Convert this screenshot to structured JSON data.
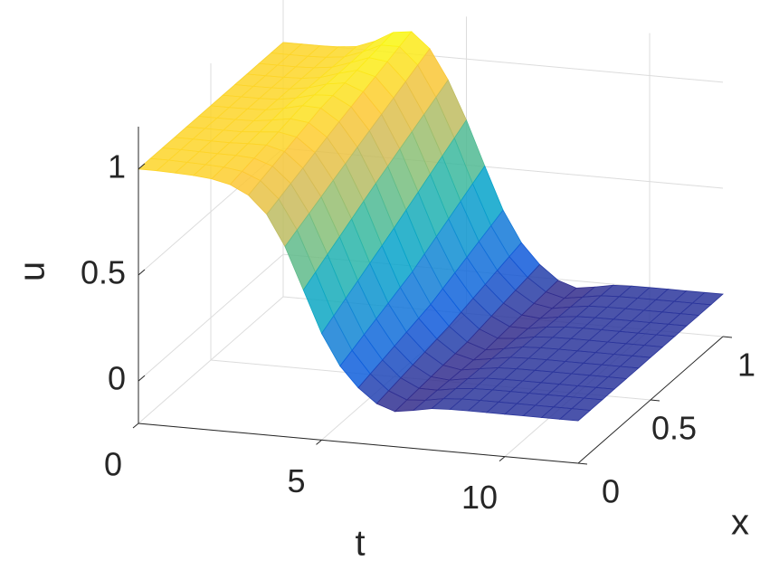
{
  "chart_data": {
    "type": "surface",
    "t_label": "t",
    "x_label": "x",
    "z_label": "u",
    "t": [
      0,
      0.5,
      1,
      1.5,
      2,
      2.5,
      3,
      3.5,
      4,
      4.5,
      5,
      5.5,
      6,
      6.5,
      7,
      7.5,
      8,
      8.5,
      9,
      9.5,
      10,
      10.5,
      11,
      11.5,
      12
    ],
    "x": [
      0,
      0.5,
      1
    ],
    "z": [
      [
        1,
        1,
        0.997,
        0.993,
        0.985,
        0.966,
        0.924,
        0.841,
        0.697,
        0.5,
        0.303,
        0.157,
        0.062,
        -0.005,
        -0.034,
        -0.021,
        -0.005,
        -0.001,
        0,
        0,
        0,
        0,
        0,
        0,
        0
      ],
      [
        1,
        1,
        1.001,
        1.004,
        1.019,
        1.04,
        1.036,
        0.979,
        0.867,
        0.704,
        0.501,
        0.303,
        0.157,
        0.062,
        -0.005,
        -0.034,
        -0.021,
        -0.005,
        -0.001,
        0,
        0,
        0,
        0,
        0,
        0
      ],
      [
        1,
        1,
        1,
        1.003,
        1.012,
        1.045,
        1.094,
        1.106,
        1.033,
        0.893,
        0.712,
        0.503,
        0.303,
        0.157,
        0.062,
        -0.005,
        -0.034,
        -0.021,
        -0.005,
        -0.001,
        0,
        0,
        0,
        0,
        0
      ]
    ],
    "tlim": [
      0,
      12
    ],
    "tticks": [
      0,
      5,
      10
    ],
    "xlim": [
      0,
      1
    ],
    "xticks": [
      0,
      0.5,
      1
    ],
    "zlim": [
      -0.2,
      1.2
    ],
    "zticks": [
      0,
      0.5,
      1
    ],
    "grid": true,
    "colormap": "parula"
  }
}
